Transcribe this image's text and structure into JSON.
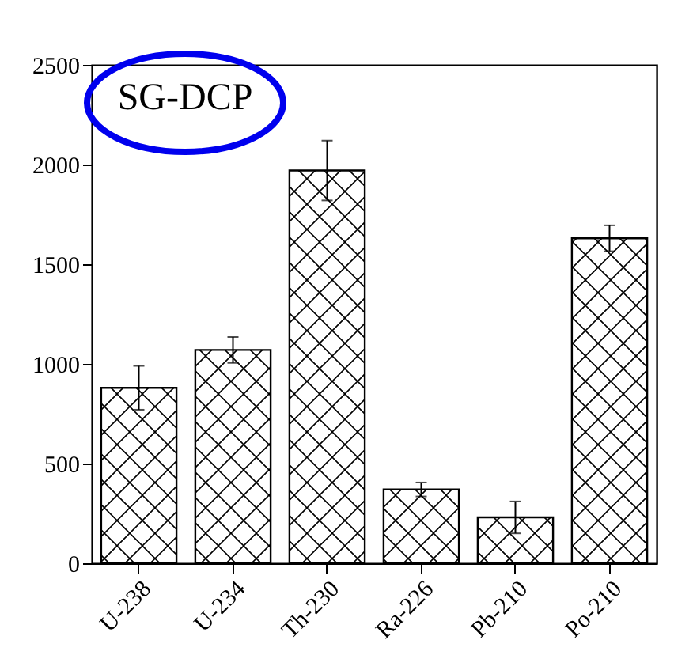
{
  "chart_data": {
    "type": "bar",
    "categories": [
      "U-238",
      "U-234",
      "Th-230",
      "Ra-226",
      "Pb-210",
      "Po-210"
    ],
    "values": [
      880,
      1070,
      1970,
      370,
      230,
      1630
    ],
    "errors": [
      110,
      65,
      150,
      35,
      80,
      65
    ],
    "color": "#000000",
    "ylim": [
      0,
      2500
    ],
    "yticks": [
      0,
      500,
      1000,
      1500,
      2000,
      2500
    ],
    "annotations": [
      "SG-DCP"
    ]
  }
}
